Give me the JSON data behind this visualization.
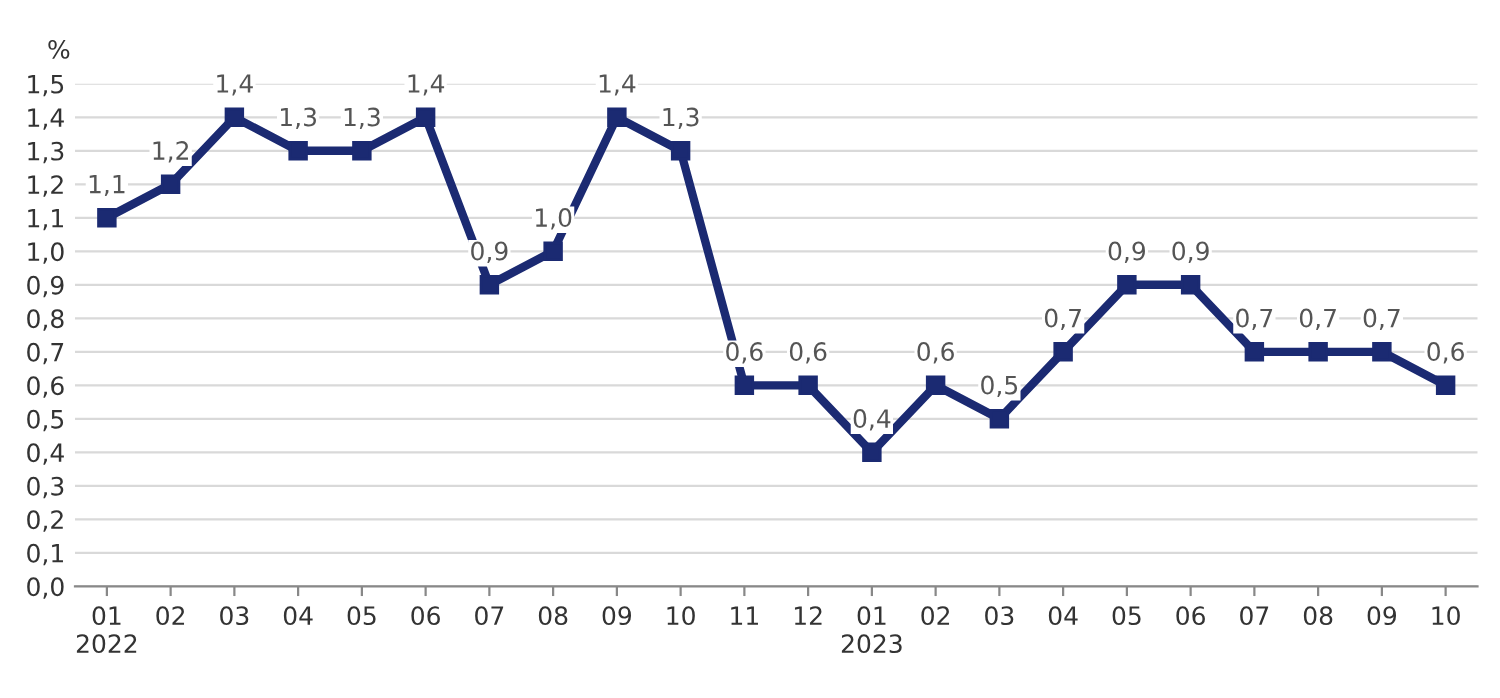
{
  "chart_data": {
    "type": "line",
    "ylabel": "%",
    "categories": [
      "01\n2022",
      "02",
      "03",
      "04",
      "05",
      "06",
      "07",
      "08",
      "09",
      "10",
      "11",
      "12",
      "01\n2023",
      "02",
      "03",
      "04",
      "05",
      "06",
      "07",
      "08",
      "09",
      "10"
    ],
    "series": [
      {
        "color": "#1b2a72",
        "values": [
          1.1,
          1.2,
          1.4,
          1.3,
          1.3,
          1.4,
          0.9,
          1.0,
          1.4,
          1.3,
          0.6,
          0.6,
          0.4,
          0.6,
          0.5,
          0.7,
          0.9,
          0.9,
          0.7,
          0.7,
          0.7,
          0.6
        ],
        "value_labels": [
          "1,1",
          "1,2",
          "1,4",
          "1,3",
          "1,3",
          "1,4",
          "0,9",
          "1,0",
          "1,4",
          "1,3",
          "0,6",
          "0,6",
          "0,4",
          "0,6",
          "0,5",
          "0,7",
          "0,9",
          "0,9",
          "0,7",
          "0,7",
          "0,7",
          "0,6"
        ]
      }
    ],
    "ylim": [
      0,
      1.5
    ],
    "yticks": [
      {
        "value": 0,
        "label": "0,0"
      },
      {
        "value": 0.1,
        "label": "0,1"
      },
      {
        "value": 0.2,
        "label": "0,2"
      },
      {
        "value": 0.3,
        "label": "0,3"
      },
      {
        "value": 0.4,
        "label": "0,4"
      },
      {
        "value": 0.5,
        "label": "0,5"
      },
      {
        "value": 0.6,
        "label": "0,6"
      },
      {
        "value": 0.7,
        "label": "0,7"
      },
      {
        "value": 0.8,
        "label": "0,8"
      },
      {
        "value": 0.9,
        "label": "0,9"
      },
      {
        "value": 1.0,
        "label": "1,0"
      },
      {
        "value": 1.1,
        "label": "1,1"
      },
      {
        "value": 1.2,
        "label": "1,2"
      },
      {
        "value": 1.3,
        "label": "1,3"
      },
      {
        "value": 1.4,
        "label": "1,4"
      },
      {
        "value": 1.5,
        "label": "1,5"
      }
    ],
    "grid": "y",
    "marker": "square",
    "line_style": "solid",
    "legend": false
  }
}
